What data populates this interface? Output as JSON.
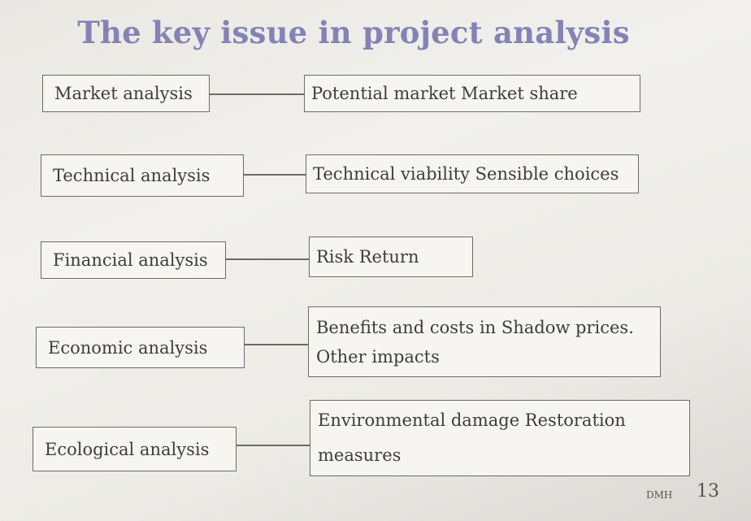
{
  "slide": {
    "title": "The key issue in project analysis",
    "rows": [
      {
        "analysis": "Market analysis",
        "detail": "Potential market Market share"
      },
      {
        "analysis": "Technical analysis",
        "detail": "Technical viability Sensible choices"
      },
      {
        "analysis": "Financial analysis",
        "detail": "Risk Return"
      },
      {
        "analysis": "Economic analysis",
        "detail_lines": [
          "Benefits and costs in Shadow prices.",
          "Other impacts"
        ]
      },
      {
        "analysis": "Ecological analysis",
        "detail_lines": [
          "Environmental damage Restoration",
          "measures"
        ]
      }
    ],
    "footer": {
      "author": "DMH",
      "page_number": "13"
    }
  }
}
